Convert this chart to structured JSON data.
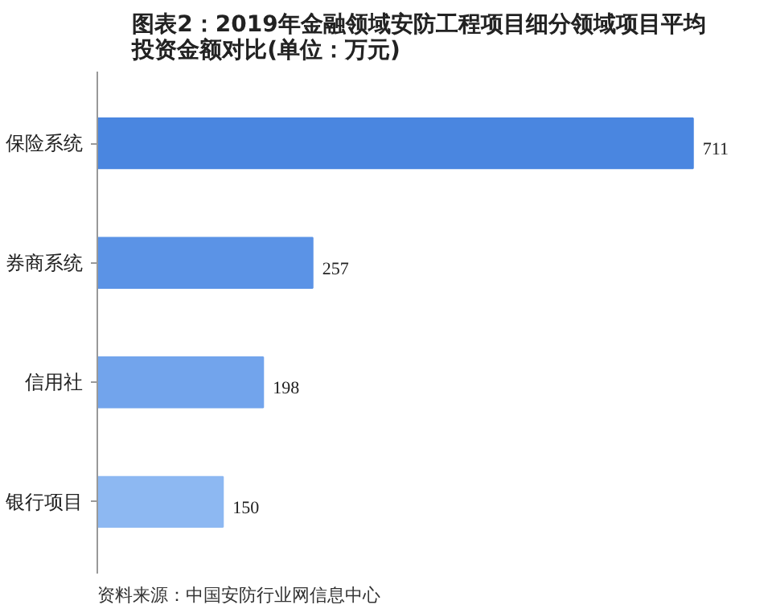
{
  "chart_data": {
    "type": "bar",
    "orientation": "horizontal",
    "title": "图表2：2019年金融领域安防工程项目细分领域项目平均投资金额对比(单位：万元)",
    "categories": [
      "保险系统",
      "券商系统",
      "信用社",
      "银行项目"
    ],
    "values": [
      711,
      257,
      198,
      150
    ],
    "colors": [
      "#4a86e0",
      "#5b93e6",
      "#72a4ec",
      "#8db8f2"
    ],
    "tick_labels": "y",
    "grid": false,
    "data_labels": true,
    "annotations": [
      "资料来源：中国安防行业网信息中心"
    ]
  }
}
